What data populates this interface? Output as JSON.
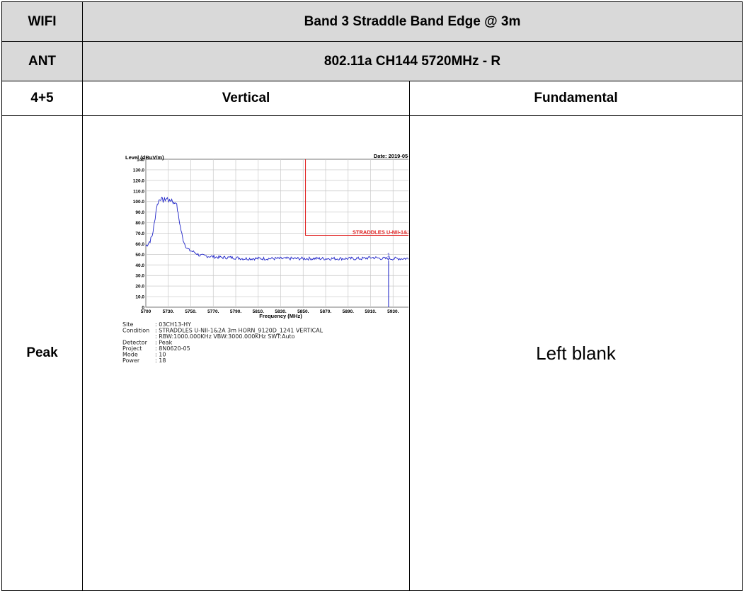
{
  "header": {
    "col1_row1": "WIFI",
    "title": "Band 3 Straddle Band Edge @ 3m",
    "col1_row2": "ANT",
    "subtitle": "802.11a CH144 5720MHz - R"
  },
  "columns": {
    "ant": "4+5",
    "vertical": "Vertical",
    "fundamental": "Fundamental"
  },
  "row": {
    "label": "Peak",
    "blank_text": "Left blank"
  },
  "plot": {
    "ylabel": "Level (dBuV/m)",
    "date": "Date: 2019-05-25",
    "xlabel": "Frequency (MHz)",
    "limit_label": "STRADDLES U-NII-1&2A",
    "marker_label": "1",
    "info": [
      {
        "key": "Site",
        "value": ": 03CH13-HY"
      },
      {
        "key": "Condition",
        "value": ": STRADDLES U-NII-1&2A 3m HORN_9120D_1241 VERTICAL"
      },
      {
        "key": "",
        "value": ": RBW:1000.000KHz VBW:3000.000KHz SWT:Auto"
      },
      {
        "key": "Detector",
        "value": ": Peak"
      },
      {
        "key": "Project",
        "value": ": 8N0620-05"
      },
      {
        "key": "Mode",
        "value": ": 10"
      },
      {
        "key": "Power",
        "value": ": 18"
      }
    ]
  },
  "chart_data": {
    "type": "line",
    "xlabel": "Frequency (MHz)",
    "ylabel": "Level (dBuV/m)",
    "xlim": [
      5700,
      5950
    ],
    "ylim": [
      0,
      140
    ],
    "x_ticks": [
      "5700",
      "5730.",
      "5750.",
      "5770.",
      "5790.",
      "5810.",
      "5830.",
      "5850.",
      "5870.",
      "5890.",
      "5910.",
      "5930.",
      "5950"
    ],
    "y_ticks": [
      "0",
      "10.0",
      "20.0",
      "30.0",
      "40.0",
      "50.0",
      "60.0",
      "70.0",
      "80.0",
      "90.0",
      "100.0",
      "110.0",
      "120.0",
      "130.0",
      "140"
    ],
    "grid": true,
    "series": [
      {
        "color": "#1f24c8",
        "x": [
          5700,
          5702,
          5704,
          5706,
          5708,
          5710,
          5712,
          5714,
          5716,
          5718,
          5720,
          5722,
          5724,
          5726,
          5728,
          5730,
          5732,
          5734,
          5736,
          5738,
          5740,
          5745,
          5750,
          5760,
          5770,
          5780,
          5790,
          5800,
          5810,
          5820,
          5830,
          5840,
          5850,
          5860,
          5870,
          5880,
          5890,
          5900,
          5910,
          5920,
          5928,
          5935,
          5940,
          5950
        ],
        "y": [
          58,
          60,
          63,
          68,
          80,
          95,
          101,
          103,
          101,
          102,
          103,
          100,
          102,
          98,
          100,
          88,
          76,
          66,
          60,
          56,
          54,
          52,
          49,
          48,
          47,
          47,
          46,
          46,
          46,
          46,
          46,
          46,
          46,
          46,
          46,
          46,
          46,
          46,
          47,
          46,
          46,
          46,
          46,
          46
        ]
      }
    ],
    "limit_line": {
      "x_start": 5848,
      "x_end": 5950,
      "y": 68
    },
    "limit_vertical": {
      "x": 5848,
      "y_from": 68,
      "y_to": 140
    },
    "marker": {
      "x": 5925,
      "y": 46
    }
  }
}
